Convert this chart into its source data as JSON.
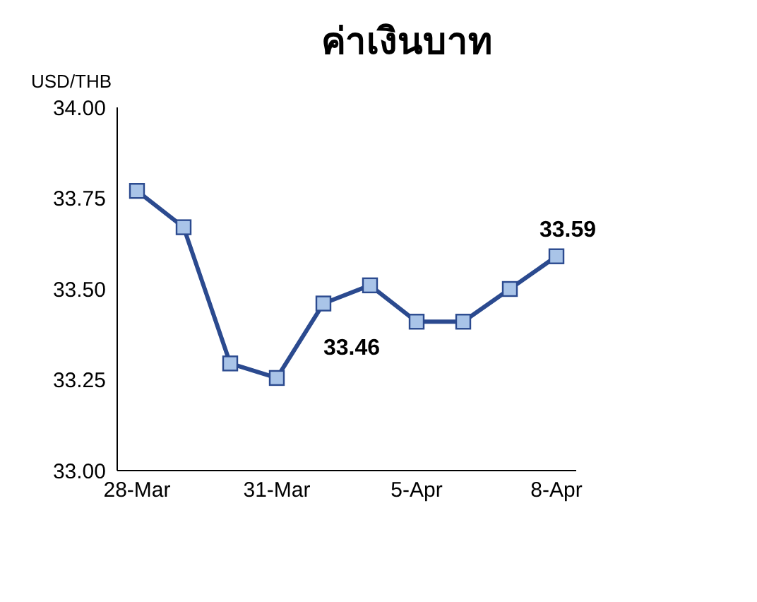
{
  "chart_data": {
    "type": "line",
    "title": "ค่าเงินบาท",
    "ylabel": "USD/THB",
    "categories": [
      "28-Mar",
      null,
      null,
      "31-Mar",
      null,
      null,
      "5-Apr",
      null,
      null,
      "8-Apr"
    ],
    "series": [
      {
        "color": "#2b4a8f",
        "values": [
          33.77,
          33.67,
          33.295,
          33.255,
          33.46,
          33.51,
          33.41,
          33.41,
          33.5,
          33.59
        ],
        "value_labels": [
          null,
          null,
          null,
          null,
          "33.46",
          null,
          null,
          null,
          null,
          "33.59"
        ]
      }
    ],
    "ylim": [
      33,
      34
    ],
    "yticks": [
      {
        "value": 33,
        "label": "33.00"
      },
      {
        "value": 33.25,
        "label": "33.25"
      },
      {
        "value": 33.5,
        "label": "33.50"
      },
      {
        "value": 33.75,
        "label": "33.75"
      },
      {
        "value": 34,
        "label": "34.00"
      }
    ],
    "grid": false,
    "legend": false,
    "marker": "square",
    "line_style": "solid"
  }
}
